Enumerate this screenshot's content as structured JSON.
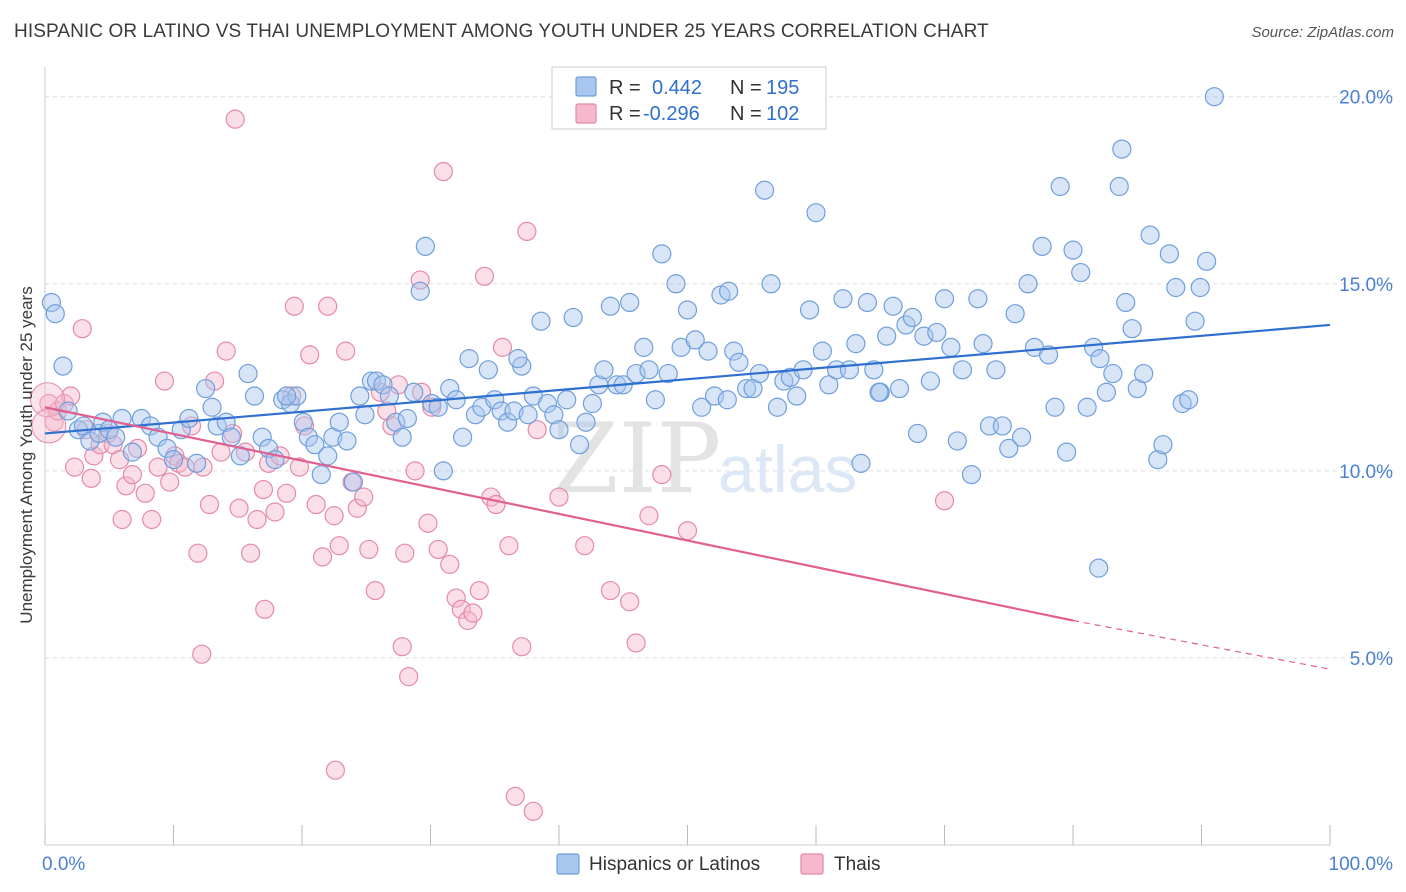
{
  "title": "HISPANIC OR LATINO VS THAI UNEMPLOYMENT AMONG YOUTH UNDER 25 YEARS CORRELATION CHART",
  "source": "Source: ZipAtlas.com",
  "watermark": {
    "zip": "ZIP",
    "atlas": "atlas"
  },
  "colors": {
    "blue_fill": "#a9c6ee",
    "blue_stroke": "#6f9fdc",
    "blue_line": "#2e6fd0",
    "pink_fill": "#f6b8cc",
    "pink_stroke": "#e48aaa",
    "pink_line": "#e06090",
    "grid": "#dddddd",
    "tick_text": "#4a7fd4"
  },
  "legend": {
    "rows": [
      {
        "r_label": "R =",
        "r_value": "0.442",
        "n_label": "N =",
        "n_value": "195"
      },
      {
        "r_label": "R =",
        "r_value": "-0.296",
        "n_label": "N =",
        "n_value": "102"
      }
    ]
  },
  "chart_data": {
    "type": "scatter",
    "title": "HISPANIC OR LATINO VS THAI UNEMPLOYMENT AMONG YOUTH UNDER 25 YEARS CORRELATION CHART",
    "xlabel": "",
    "ylabel": "Unemployment Among Youth under 25 years",
    "xlim": [
      0,
      100
    ],
    "ylim": [
      0,
      20.5
    ],
    "x_tick_labels": [
      "0.0%",
      "100.0%"
    ],
    "y_ticks": [
      5,
      10,
      15,
      20
    ],
    "y_tick_labels": [
      "5.0%",
      "10.0%",
      "15.0%",
      "20.0%"
    ],
    "grid": true,
    "legend_position": "top-center",
    "series": [
      {
        "name": "Hispanics or Latinos",
        "R": 0.442,
        "N": 195,
        "trend": {
          "x": [
            0,
            100
          ],
          "y": [
            11.0,
            13.9
          ]
        },
        "points": [
          [
            0.5,
            14.5
          ],
          [
            0.8,
            14.2
          ],
          [
            1.4,
            12.8
          ],
          [
            1.8,
            11.6
          ],
          [
            2.6,
            11.1
          ],
          [
            3.0,
            11.2
          ],
          [
            3.5,
            10.8
          ],
          [
            4.2,
            11.0
          ],
          [
            4.5,
            11.3
          ],
          [
            5.0,
            11.1
          ],
          [
            5.5,
            10.9
          ],
          [
            6.0,
            11.4
          ],
          [
            6.8,
            10.5
          ],
          [
            7.5,
            11.4
          ],
          [
            8.2,
            11.2
          ],
          [
            8.8,
            10.9
          ],
          [
            9.5,
            10.6
          ],
          [
            10.0,
            10.3
          ],
          [
            10.6,
            11.1
          ],
          [
            11.2,
            11.4
          ],
          [
            11.8,
            10.2
          ],
          [
            12.5,
            12.2
          ],
          [
            13.0,
            11.7
          ],
          [
            13.4,
            11.2
          ],
          [
            14.1,
            11.3
          ],
          [
            14.5,
            10.9
          ],
          [
            15.2,
            10.4
          ],
          [
            15.8,
            12.6
          ],
          [
            16.3,
            12.0
          ],
          [
            16.9,
            10.9
          ],
          [
            17.4,
            10.6
          ],
          [
            17.9,
            10.3
          ],
          [
            18.5,
            11.9
          ],
          [
            19.1,
            11.8
          ],
          [
            19.6,
            12.0
          ],
          [
            20.1,
            11.3
          ],
          [
            20.5,
            10.9
          ],
          [
            21.0,
            10.7
          ],
          [
            21.5,
            9.9
          ],
          [
            22.0,
            10.4
          ],
          [
            22.4,
            10.9
          ],
          [
            22.9,
            11.3
          ],
          [
            23.5,
            10.8
          ],
          [
            24.0,
            9.7
          ],
          [
            24.5,
            12.0
          ],
          [
            24.9,
            11.5
          ],
          [
            25.4,
            12.4
          ],
          [
            25.8,
            12.4
          ],
          [
            26.3,
            12.3
          ],
          [
            26.8,
            12.0
          ],
          [
            27.3,
            11.3
          ],
          [
            27.8,
            10.9
          ],
          [
            28.2,
            11.4
          ],
          [
            28.7,
            12.1
          ],
          [
            29.2,
            14.8
          ],
          [
            29.6,
            16.0
          ],
          [
            30.1,
            11.8
          ],
          [
            30.6,
            11.7
          ],
          [
            31.0,
            10.0
          ],
          [
            31.5,
            12.2
          ],
          [
            32.0,
            11.9
          ],
          [
            32.5,
            10.9
          ],
          [
            33.0,
            13.0
          ],
          [
            33.5,
            11.5
          ],
          [
            34.0,
            11.7
          ],
          [
            34.5,
            12.7
          ],
          [
            35.0,
            11.9
          ],
          [
            35.5,
            11.6
          ],
          [
            36.0,
            11.3
          ],
          [
            36.5,
            11.6
          ],
          [
            37.1,
            12.8
          ],
          [
            37.6,
            11.5
          ],
          [
            38.0,
            12.0
          ],
          [
            38.6,
            14.0
          ],
          [
            39.1,
            11.8
          ],
          [
            39.6,
            11.5
          ],
          [
            40.0,
            11.1
          ],
          [
            40.6,
            11.9
          ],
          [
            41.1,
            14.1
          ],
          [
            41.6,
            10.7
          ],
          [
            42.1,
            11.3
          ],
          [
            42.6,
            11.8
          ],
          [
            43.1,
            12.3
          ],
          [
            43.5,
            12.7
          ],
          [
            44.0,
            14.4
          ],
          [
            44.5,
            12.3
          ],
          [
            45.0,
            12.3
          ],
          [
            45.5,
            14.5
          ],
          [
            46.0,
            12.6
          ],
          [
            46.6,
            13.3
          ],
          [
            47.0,
            12.7
          ],
          [
            47.5,
            11.9
          ],
          [
            48.0,
            15.8
          ],
          [
            48.5,
            12.6
          ],
          [
            49.1,
            15.0
          ],
          [
            49.5,
            13.3
          ],
          [
            50.0,
            14.3
          ],
          [
            50.6,
            13.5
          ],
          [
            51.1,
            11.7
          ],
          [
            51.6,
            13.2
          ],
          [
            52.1,
            12.0
          ],
          [
            52.6,
            14.7
          ],
          [
            53.1,
            11.9
          ],
          [
            53.6,
            13.2
          ],
          [
            54.0,
            12.9
          ],
          [
            54.6,
            12.2
          ],
          [
            55.1,
            12.2
          ],
          [
            55.6,
            12.6
          ],
          [
            56.0,
            17.5
          ],
          [
            56.5,
            15.0
          ],
          [
            57.0,
            11.7
          ],
          [
            57.5,
            12.4
          ],
          [
            58.0,
            12.5
          ],
          [
            58.5,
            12.0
          ],
          [
            59.0,
            12.7
          ],
          [
            59.5,
            14.3
          ],
          [
            60.0,
            16.9
          ],
          [
            60.5,
            13.2
          ],
          [
            61.0,
            12.3
          ],
          [
            61.6,
            12.7
          ],
          [
            62.1,
            14.6
          ],
          [
            62.6,
            12.7
          ],
          [
            63.1,
            13.4
          ],
          [
            63.5,
            10.2
          ],
          [
            64.0,
            14.5
          ],
          [
            64.5,
            12.7
          ],
          [
            65.0,
            12.1
          ],
          [
            65.5,
            13.6
          ],
          [
            66.0,
            14.4
          ],
          [
            66.5,
            12.2
          ],
          [
            67.0,
            13.9
          ],
          [
            67.5,
            14.1
          ],
          [
            67.9,
            11.0
          ],
          [
            68.4,
            13.6
          ],
          [
            68.9,
            12.4
          ],
          [
            69.4,
            13.7
          ],
          [
            70.0,
            14.6
          ],
          [
            70.5,
            13.3
          ],
          [
            71.0,
            10.8
          ],
          [
            71.4,
            12.7
          ],
          [
            72.1,
            9.9
          ],
          [
            72.6,
            14.6
          ],
          [
            73.0,
            13.4
          ],
          [
            73.5,
            11.2
          ],
          [
            74.0,
            12.7
          ],
          [
            74.5,
            11.2
          ],
          [
            75.0,
            10.6
          ],
          [
            75.5,
            14.2
          ],
          [
            76.0,
            10.9
          ],
          [
            76.5,
            15.0
          ],
          [
            77.0,
            13.3
          ],
          [
            77.6,
            16.0
          ],
          [
            78.1,
            13.1
          ],
          [
            78.6,
            11.7
          ],
          [
            79.0,
            17.6
          ],
          [
            79.5,
            10.5
          ],
          [
            80.0,
            15.9
          ],
          [
            80.6,
            15.3
          ],
          [
            81.1,
            11.7
          ],
          [
            81.6,
            13.3
          ],
          [
            82.1,
            13.0
          ],
          [
            82.6,
            12.1
          ],
          [
            83.1,
            12.6
          ],
          [
            83.6,
            17.6
          ],
          [
            83.8,
            18.6
          ],
          [
            84.1,
            14.5
          ],
          [
            84.6,
            13.8
          ],
          [
            85.0,
            12.2
          ],
          [
            85.5,
            12.6
          ],
          [
            86.0,
            16.3
          ],
          [
            86.6,
            10.3
          ],
          [
            87.0,
            10.7
          ],
          [
            87.5,
            15.8
          ],
          [
            88.0,
            14.9
          ],
          [
            88.5,
            11.8
          ],
          [
            89.0,
            11.9
          ],
          [
            89.5,
            14.0
          ],
          [
            89.9,
            14.9
          ],
          [
            90.4,
            15.6
          ],
          [
            91.0,
            20.0
          ],
          [
            18.8,
            12.0
          ],
          [
            36.8,
            13.0
          ],
          [
            53.2,
            14.8
          ],
          [
            64.9,
            12.1
          ],
          [
            82.0,
            7.4
          ]
        ]
      },
      {
        "name": "Thais",
        "R": -0.296,
        "N": 102,
        "trend": {
          "x": [
            0,
            80
          ],
          "y": [
            11.7,
            6.0
          ]
        },
        "trend_dashed": {
          "x": [
            80,
            100
          ],
          "y": [
            6.0,
            4.7
          ]
        },
        "points": [
          [
            0.3,
            11.8
          ],
          [
            0.7,
            11.3
          ],
          [
            1.0,
            11.6
          ],
          [
            1.5,
            11.8
          ],
          [
            2.0,
            12.0
          ],
          [
            2.3,
            10.1
          ],
          [
            2.9,
            13.8
          ],
          [
            3.2,
            11.1
          ],
          [
            3.8,
            10.4
          ],
          [
            4.3,
            10.7
          ],
          [
            4.9,
            11.0
          ],
          [
            5.3,
            10.7
          ],
          [
            5.8,
            10.3
          ],
          [
            6.3,
            9.6
          ],
          [
            6.8,
            9.9
          ],
          [
            7.2,
            10.6
          ],
          [
            7.8,
            9.4
          ],
          [
            8.3,
            8.7
          ],
          [
            8.8,
            10.1
          ],
          [
            9.3,
            12.4
          ],
          [
            9.7,
            9.7
          ],
          [
            10.1,
            10.4
          ],
          [
            10.4,
            10.2
          ],
          [
            10.9,
            10.1
          ],
          [
            11.4,
            11.2
          ],
          [
            11.9,
            7.8
          ],
          [
            12.3,
            10.1
          ],
          [
            12.8,
            9.1
          ],
          [
            13.2,
            12.4
          ],
          [
            13.7,
            10.5
          ],
          [
            14.1,
            13.2
          ],
          [
            14.6,
            11.0
          ],
          [
            15.1,
            9.0
          ],
          [
            15.6,
            10.5
          ],
          [
            16.0,
            7.8
          ],
          [
            16.5,
            8.7
          ],
          [
            17.0,
            9.5
          ],
          [
            17.4,
            10.2
          ],
          [
            17.9,
            8.9
          ],
          [
            18.3,
            10.4
          ],
          [
            18.8,
            9.4
          ],
          [
            19.2,
            12.0
          ],
          [
            19.8,
            10.1
          ],
          [
            20.2,
            11.2
          ],
          [
            20.6,
            13.1
          ],
          [
            21.1,
            9.1
          ],
          [
            21.6,
            7.7
          ],
          [
            22.0,
            14.4
          ],
          [
            22.5,
            8.8
          ],
          [
            22.9,
            8.0
          ],
          [
            23.4,
            13.2
          ],
          [
            23.9,
            9.7
          ],
          [
            24.3,
            9.0
          ],
          [
            24.8,
            9.3
          ],
          [
            25.2,
            7.9
          ],
          [
            25.7,
            6.8
          ],
          [
            26.1,
            12.1
          ],
          [
            26.6,
            11.6
          ],
          [
            27.0,
            11.2
          ],
          [
            27.5,
            12.3
          ],
          [
            28.0,
            7.8
          ],
          [
            28.3,
            4.5
          ],
          [
            28.8,
            10.0
          ],
          [
            29.3,
            12.1
          ],
          [
            29.8,
            8.6
          ],
          [
            30.1,
            11.7
          ],
          [
            30.6,
            7.9
          ],
          [
            31.0,
            18.0
          ],
          [
            31.5,
            7.5
          ],
          [
            32.0,
            6.6
          ],
          [
            32.4,
            6.3
          ],
          [
            32.9,
            6.0
          ],
          [
            33.3,
            6.2
          ],
          [
            33.8,
            6.8
          ],
          [
            34.2,
            15.2
          ],
          [
            34.7,
            9.3
          ],
          [
            35.1,
            9.1
          ],
          [
            35.6,
            13.3
          ],
          [
            36.1,
            8.0
          ],
          [
            36.6,
            1.3
          ],
          [
            37.1,
            5.3
          ],
          [
            37.5,
            16.4
          ],
          [
            38.0,
            0.9
          ],
          [
            38.3,
            11.1
          ],
          [
            27.8,
            5.3
          ],
          [
            22.6,
            2.0
          ],
          [
            17.1,
            6.3
          ],
          [
            14.8,
            19.4
          ],
          [
            19.4,
            14.4
          ],
          [
            29.2,
            15.1
          ],
          [
            12.2,
            5.1
          ],
          [
            6.0,
            8.7
          ],
          [
            3.6,
            9.8
          ],
          [
            48.0,
            9.9
          ],
          [
            50.0,
            8.4
          ],
          [
            40.0,
            9.3
          ],
          [
            42.0,
            8.0
          ],
          [
            44.0,
            6.8
          ],
          [
            46.0,
            5.4
          ],
          [
            70.0,
            9.2
          ],
          [
            47.0,
            8.8
          ],
          [
            45.5,
            6.5
          ]
        ]
      }
    ]
  },
  "bottom_legend": [
    {
      "label": "Hispanics or Latinos"
    },
    {
      "label": "Thais"
    }
  ]
}
